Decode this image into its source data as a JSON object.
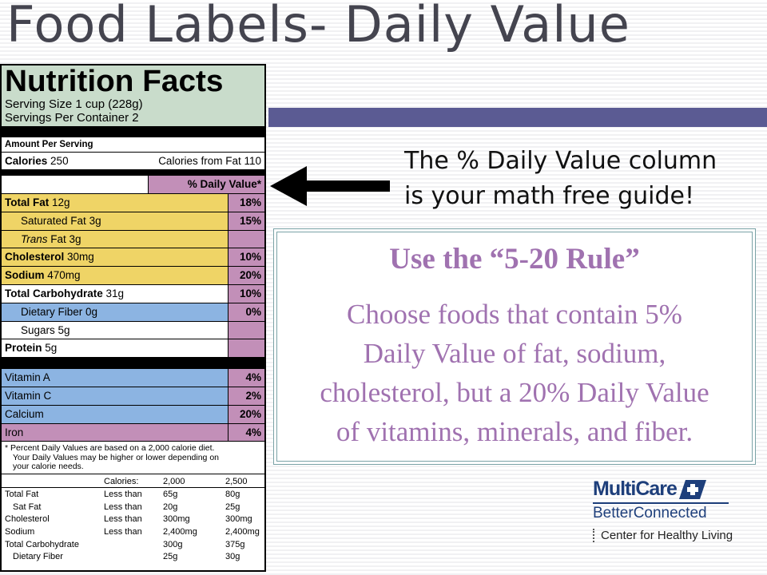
{
  "slide": {
    "title": "Food Labels- Daily Value"
  },
  "label": {
    "title": "Nutrition Facts",
    "serving_size": "Serving Size 1 cup (228g)",
    "servings_per_container": "Servings Per Container  2",
    "amount_per_serving": "Amount Per Serving",
    "calories_label": "Calories",
    "calories_value": "250",
    "calories_from_fat": "Calories from Fat 110",
    "dv_header": "% Daily Value*",
    "nutrients": [
      {
        "name": "Total Fat",
        "amount": "12g",
        "dv": "18%"
      },
      {
        "name": "Saturated Fat",
        "amount": "3g",
        "dv": "15%"
      },
      {
        "name_italic": "Trans",
        "name": " Fat",
        "amount": "3g",
        "dv": ""
      },
      {
        "name": "Cholesterol",
        "amount": "30mg",
        "dv": "10%"
      },
      {
        "name": "Sodium",
        "amount": "470mg",
        "dv": "20%"
      },
      {
        "name": "Total Carbohydrate",
        "amount": "31g",
        "dv": "10%"
      },
      {
        "name": "Dietary Fiber",
        "amount": "0g",
        "dv": "0%"
      },
      {
        "name": "Sugars",
        "amount": "5g",
        "dv": ""
      },
      {
        "name": "Protein",
        "amount": "5g",
        "dv": ""
      }
    ],
    "vitamins": [
      {
        "name": "Vitamin A",
        "dv": "4%"
      },
      {
        "name": "Vitamin C",
        "dv": "2%"
      },
      {
        "name": "Calcium",
        "dv": "20%"
      },
      {
        "name": "Iron",
        "dv": "4%"
      }
    ],
    "footnote_1": "* Percent Daily Values are based on a 2,000 calorie diet.",
    "footnote_2": "Your Daily Values may be higher or lower depending on",
    "footnote_3": "your calorie needs.",
    "reference": {
      "headers": [
        "",
        "Calories:",
        "2,000",
        "2,500"
      ],
      "rows": [
        [
          "Total Fat",
          "Less than",
          "65g",
          "80g"
        ],
        [
          "Sat Fat",
          "Less than",
          "20g",
          "25g"
        ],
        [
          "Cholesterol",
          "Less than",
          "300mg",
          "300mg"
        ],
        [
          "Sodium",
          "Less than",
          "2,400mg",
          "2,400mg"
        ],
        [
          "Total Carbohydrate",
          "",
          "300g",
          "375g"
        ],
        [
          "Dietary Fiber",
          "",
          "25g",
          "30g"
        ]
      ]
    }
  },
  "callout": {
    "line1": "The % Daily Value column",
    "line2": "is your math free guide!"
  },
  "rule": {
    "title": "Use the “5-20 Rule”",
    "line1": "Choose foods that contain 5%",
    "line2": "Daily Value of fat, sodium,",
    "line3": "cholesterol, but a 20% Daily Value",
    "line4": "of vitamins, minerals, and fiber."
  },
  "logo": {
    "name": "MultiCare",
    "tagline": "BetterConnected",
    "center": "Center for Healthy Living"
  },
  "colors": {
    "title": "#44444f",
    "accent_bar": "#5b5b93",
    "label_header": "#c9dccb",
    "yellow": "#efd466",
    "blue": "#8cb4e2",
    "magenta": "#c28fb8",
    "rule_text": "#a072b0",
    "logo_blue": "#1e3f7b"
  }
}
